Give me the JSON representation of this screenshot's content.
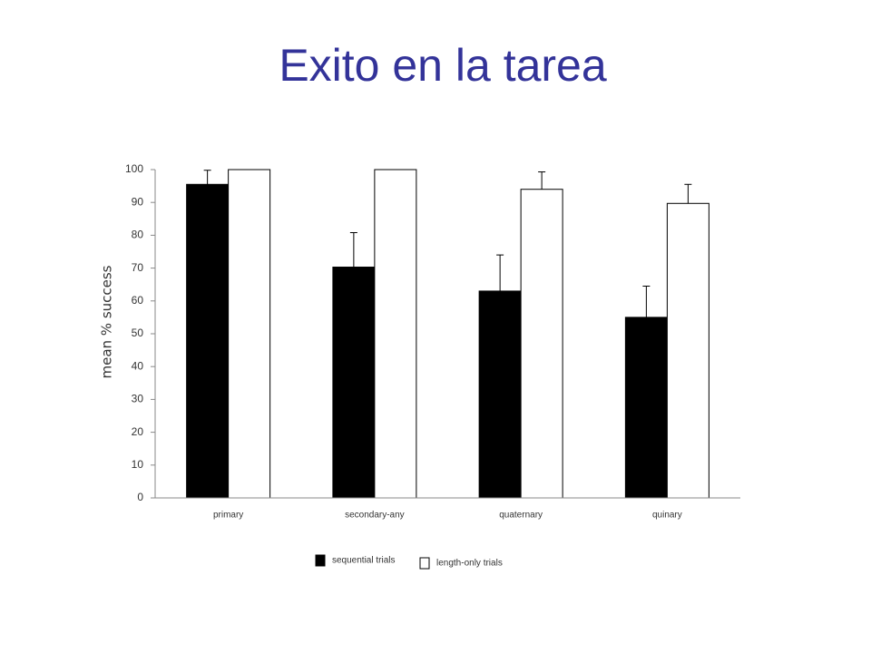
{
  "chart_data": {
    "type": "bar",
    "title": "Exito en la tarea",
    "y_label": "mean % success",
    "categories": [
      "primary",
      "secondary-any",
      "quaternary",
      "quinary"
    ],
    "series": [
      {
        "name": "sequential trials",
        "color": "#000000",
        "values": [
          95.5,
          70.3,
          63,
          55
        ],
        "errors": [
          4.3,
          10.5,
          11,
          9.5
        ]
      },
      {
        "name": "length-only trials",
        "color": "#ffffff",
        "values": [
          100,
          100,
          94,
          89.7
        ],
        "errors": [
          null,
          null,
          5.3,
          5.8
        ]
      }
    ],
    "ylim": [
      0,
      100
    ],
    "yticks": [
      0,
      10,
      20,
      30,
      40,
      50,
      60,
      70,
      80,
      90,
      100
    ],
    "grid": false,
    "legend": "bottom"
  }
}
